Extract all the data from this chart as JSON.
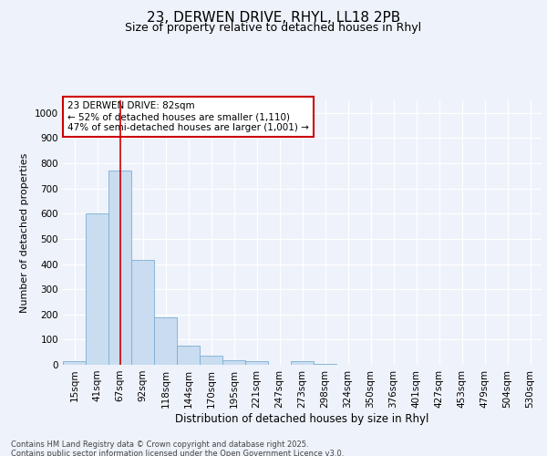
{
  "title": "23, DERWEN DRIVE, RHYL, LL18 2PB",
  "subtitle": "Size of property relative to detached houses in Rhyl",
  "xlabel": "Distribution of detached houses by size in Rhyl",
  "ylabel": "Number of detached properties",
  "categories": [
    "15sqm",
    "41sqm",
    "67sqm",
    "92sqm",
    "118sqm",
    "144sqm",
    "170sqm",
    "195sqm",
    "221sqm",
    "247sqm",
    "273sqm",
    "298sqm",
    "324sqm",
    "350sqm",
    "376sqm",
    "401sqm",
    "427sqm",
    "453sqm",
    "479sqm",
    "504sqm",
    "530sqm"
  ],
  "values": [
    15,
    600,
    770,
    415,
    190,
    75,
    38,
    17,
    13,
    0,
    13,
    5,
    0,
    0,
    0,
    0,
    0,
    0,
    0,
    0,
    0
  ],
  "bar_color": "#c9dcf0",
  "bar_edgecolor": "#7bafd4",
  "vline_x": 2.0,
  "vline_color": "#cc0000",
  "annotation_text": "23 DERWEN DRIVE: 82sqm\n← 52% of detached houses are smaller (1,110)\n47% of semi-detached houses are larger (1,001) →",
  "annotation_box_edgecolor": "#cc0000",
  "annotation_box_facecolor": "#ffffff",
  "ylim": [
    0,
    1050
  ],
  "yticks": [
    0,
    100,
    200,
    300,
    400,
    500,
    600,
    700,
    800,
    900,
    1000
  ],
  "background_color": "#eef2fa",
  "footer_text": "Contains HM Land Registry data © Crown copyright and database right 2025.\nContains public sector information licensed under the Open Government Licence v3.0.",
  "title_fontsize": 11,
  "subtitle_fontsize": 9,
  "axis_label_fontsize": 8,
  "tick_fontsize": 7.5,
  "annotation_fontsize": 7.5,
  "footer_fontsize": 6
}
